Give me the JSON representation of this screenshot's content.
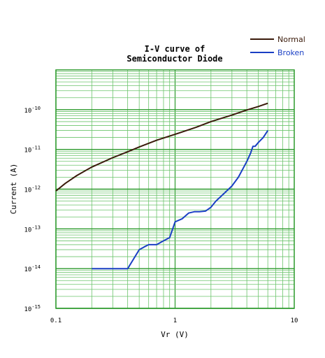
{
  "chart_data": {
    "type": "line",
    "title_lines": [
      "I-V curve of",
      "Semiconductor Diode"
    ],
    "xlabel": "Vr (V)",
    "ylabel": "Current (A)",
    "x_scale": "log",
    "y_scale": "log",
    "xlim": [
      0.1,
      10
    ],
    "ylim": [
      1e-15,
      1e-09
    ],
    "grid": true,
    "legend_position": "top-right",
    "x_ticks": [
      {
        "value": 0.1,
        "label": "0.1"
      },
      {
        "value": 1,
        "label": "1"
      },
      {
        "value": 10,
        "label": "10"
      }
    ],
    "y_ticks": [
      {
        "value": 1e-15,
        "base": "10",
        "exp": "-15"
      },
      {
        "value": 1e-14,
        "base": "10",
        "exp": "-14"
      },
      {
        "value": 1e-13,
        "base": "10",
        "exp": "-13"
      },
      {
        "value": 1e-12,
        "base": "10",
        "exp": "-12"
      },
      {
        "value": 1e-11,
        "base": "10",
        "exp": "-11"
      },
      {
        "value": 1e-10,
        "base": "10",
        "exp": "-10"
      }
    ],
    "series": [
      {
        "name": "Normal",
        "color": "#3a1a0a",
        "x": [
          0.1,
          0.12,
          0.15,
          0.2,
          0.3,
          0.4,
          0.5,
          0.7,
          1.0,
          1.5,
          2.0,
          3.0,
          4.0,
          5.0,
          6.0
        ],
        "y": [
          9e-13,
          1.4e-12,
          2.2e-12,
          3.6e-12,
          6.2e-12,
          8.7e-12,
          1.15e-11,
          1.7e-11,
          2.4e-11,
          3.6e-11,
          5e-11,
          7.3e-11,
          9.8e-11,
          1.2e-10,
          1.45e-10
        ]
      },
      {
        "name": "Broken",
        "color": "#1a3fc4",
        "x": [
          0.2,
          0.3,
          0.4,
          0.5,
          0.55,
          0.6,
          0.7,
          0.8,
          0.9,
          1.0,
          1.15,
          1.3,
          1.45,
          1.6,
          1.8,
          2.0,
          2.2,
          2.6,
          3.0,
          3.4,
          4.0,
          4.3,
          4.5,
          4.7,
          5.0,
          5.5,
          6.0
        ],
        "y": [
          1e-14,
          1e-14,
          1e-14,
          3e-14,
          3.5e-14,
          4e-14,
          4e-14,
          5e-14,
          6e-14,
          1.5e-13,
          1.8e-13,
          2.5e-13,
          2.7e-13,
          2.7e-13,
          2.8e-13,
          3.5e-13,
          5e-13,
          8e-13,
          1.2e-12,
          2e-12,
          5e-12,
          8e-12,
          1.2e-11,
          1.2e-11,
          1.5e-11,
          2e-11,
          3e-11
        ]
      }
    ]
  }
}
